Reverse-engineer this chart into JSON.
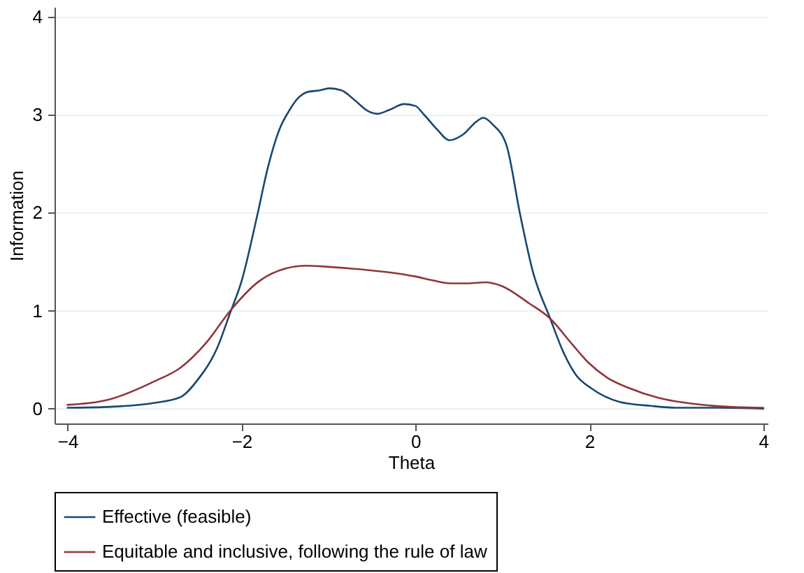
{
  "chart_data": {
    "type": "line",
    "xlabel": "Theta",
    "ylabel": "Information",
    "xlim": [
      -4.15,
      4.05
    ],
    "ylim": [
      -0.15,
      4.1
    ],
    "xticks": [
      -4,
      -2,
      0,
      2,
      4
    ],
    "yticks": [
      0,
      1,
      2,
      3,
      4
    ],
    "grid": "y",
    "legend": "bottom",
    "line_style": "solid",
    "marker": "none",
    "series": [
      {
        "name": "Effective (feasible)",
        "color": "#1a476f",
        "x": [
          -4,
          -3.5,
          -3,
          -2.7,
          -2.5,
          -2.28,
          -2.13,
          -2,
          -1.82,
          -1.7,
          -1.55,
          -1.46,
          -1.35,
          -1.25,
          -1.1,
          -0.99,
          -0.85,
          -0.7,
          -0.55,
          -0.44,
          -0.3,
          -0.13,
          0,
          0.1,
          0.25,
          0.39,
          0.55,
          0.7,
          0.78,
          0.89,
          1.05,
          1.2,
          1.35,
          1.55,
          1.7,
          1.85,
          2.02,
          2.35,
          2.7,
          3,
          3.5,
          4
        ],
        "values": [
          0.01,
          0.02,
          0.06,
          0.12,
          0.3,
          0.62,
          0.98,
          1.3,
          1.97,
          2.45,
          2.88,
          3.03,
          3.17,
          3.23,
          3.25,
          3.27,
          3.25,
          3.15,
          3.04,
          3.01,
          3.05,
          3.11,
          3.09,
          3.0,
          2.85,
          2.74,
          2.8,
          2.93,
          2.97,
          2.9,
          2.68,
          2.0,
          1.4,
          0.92,
          0.58,
          0.34,
          0.21,
          0.07,
          0.03,
          0.01,
          0.01,
          0
        ]
      },
      {
        "name": "Equitable and inclusive, following the rule of law",
        "color": "#90353b",
        "x": [
          -4,
          -3.5,
          -3,
          -2.7,
          -2.4,
          -2.13,
          -1.8,
          -1.5,
          -1.25,
          -1.03,
          -0.6,
          -0.2,
          0,
          0.2,
          0.4,
          0.6,
          0.8,
          1.0,
          1.3,
          1.55,
          1.8,
          1.99,
          2.2,
          2.46,
          2.8,
          3.2,
          3.6,
          4
        ],
        "values": [
          0.04,
          0.1,
          0.28,
          0.42,
          0.68,
          1.0,
          1.3,
          1.43,
          1.46,
          1.45,
          1.42,
          1.38,
          1.35,
          1.31,
          1.28,
          1.28,
          1.29,
          1.25,
          1.08,
          0.92,
          0.66,
          0.47,
          0.32,
          0.21,
          0.11,
          0.05,
          0.02,
          0.01
        ]
      }
    ]
  }
}
